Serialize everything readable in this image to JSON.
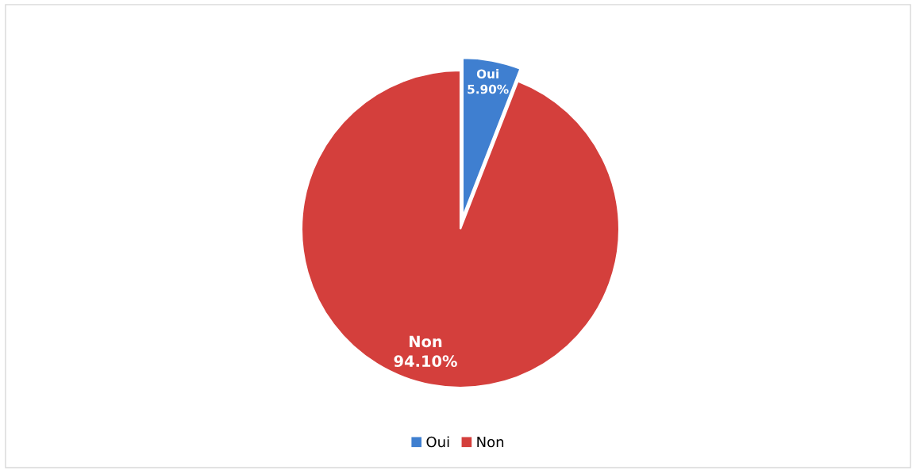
{
  "chart_data": {
    "type": "pie",
    "categories": [
      "Oui",
      "Non"
    ],
    "values": [
      5.9,
      94.1
    ],
    "value_labels": [
      "5.90%",
      "94.10%"
    ],
    "colors": [
      "#3f7fd0",
      "#d43f3c"
    ],
    "legend": "bottom"
  }
}
